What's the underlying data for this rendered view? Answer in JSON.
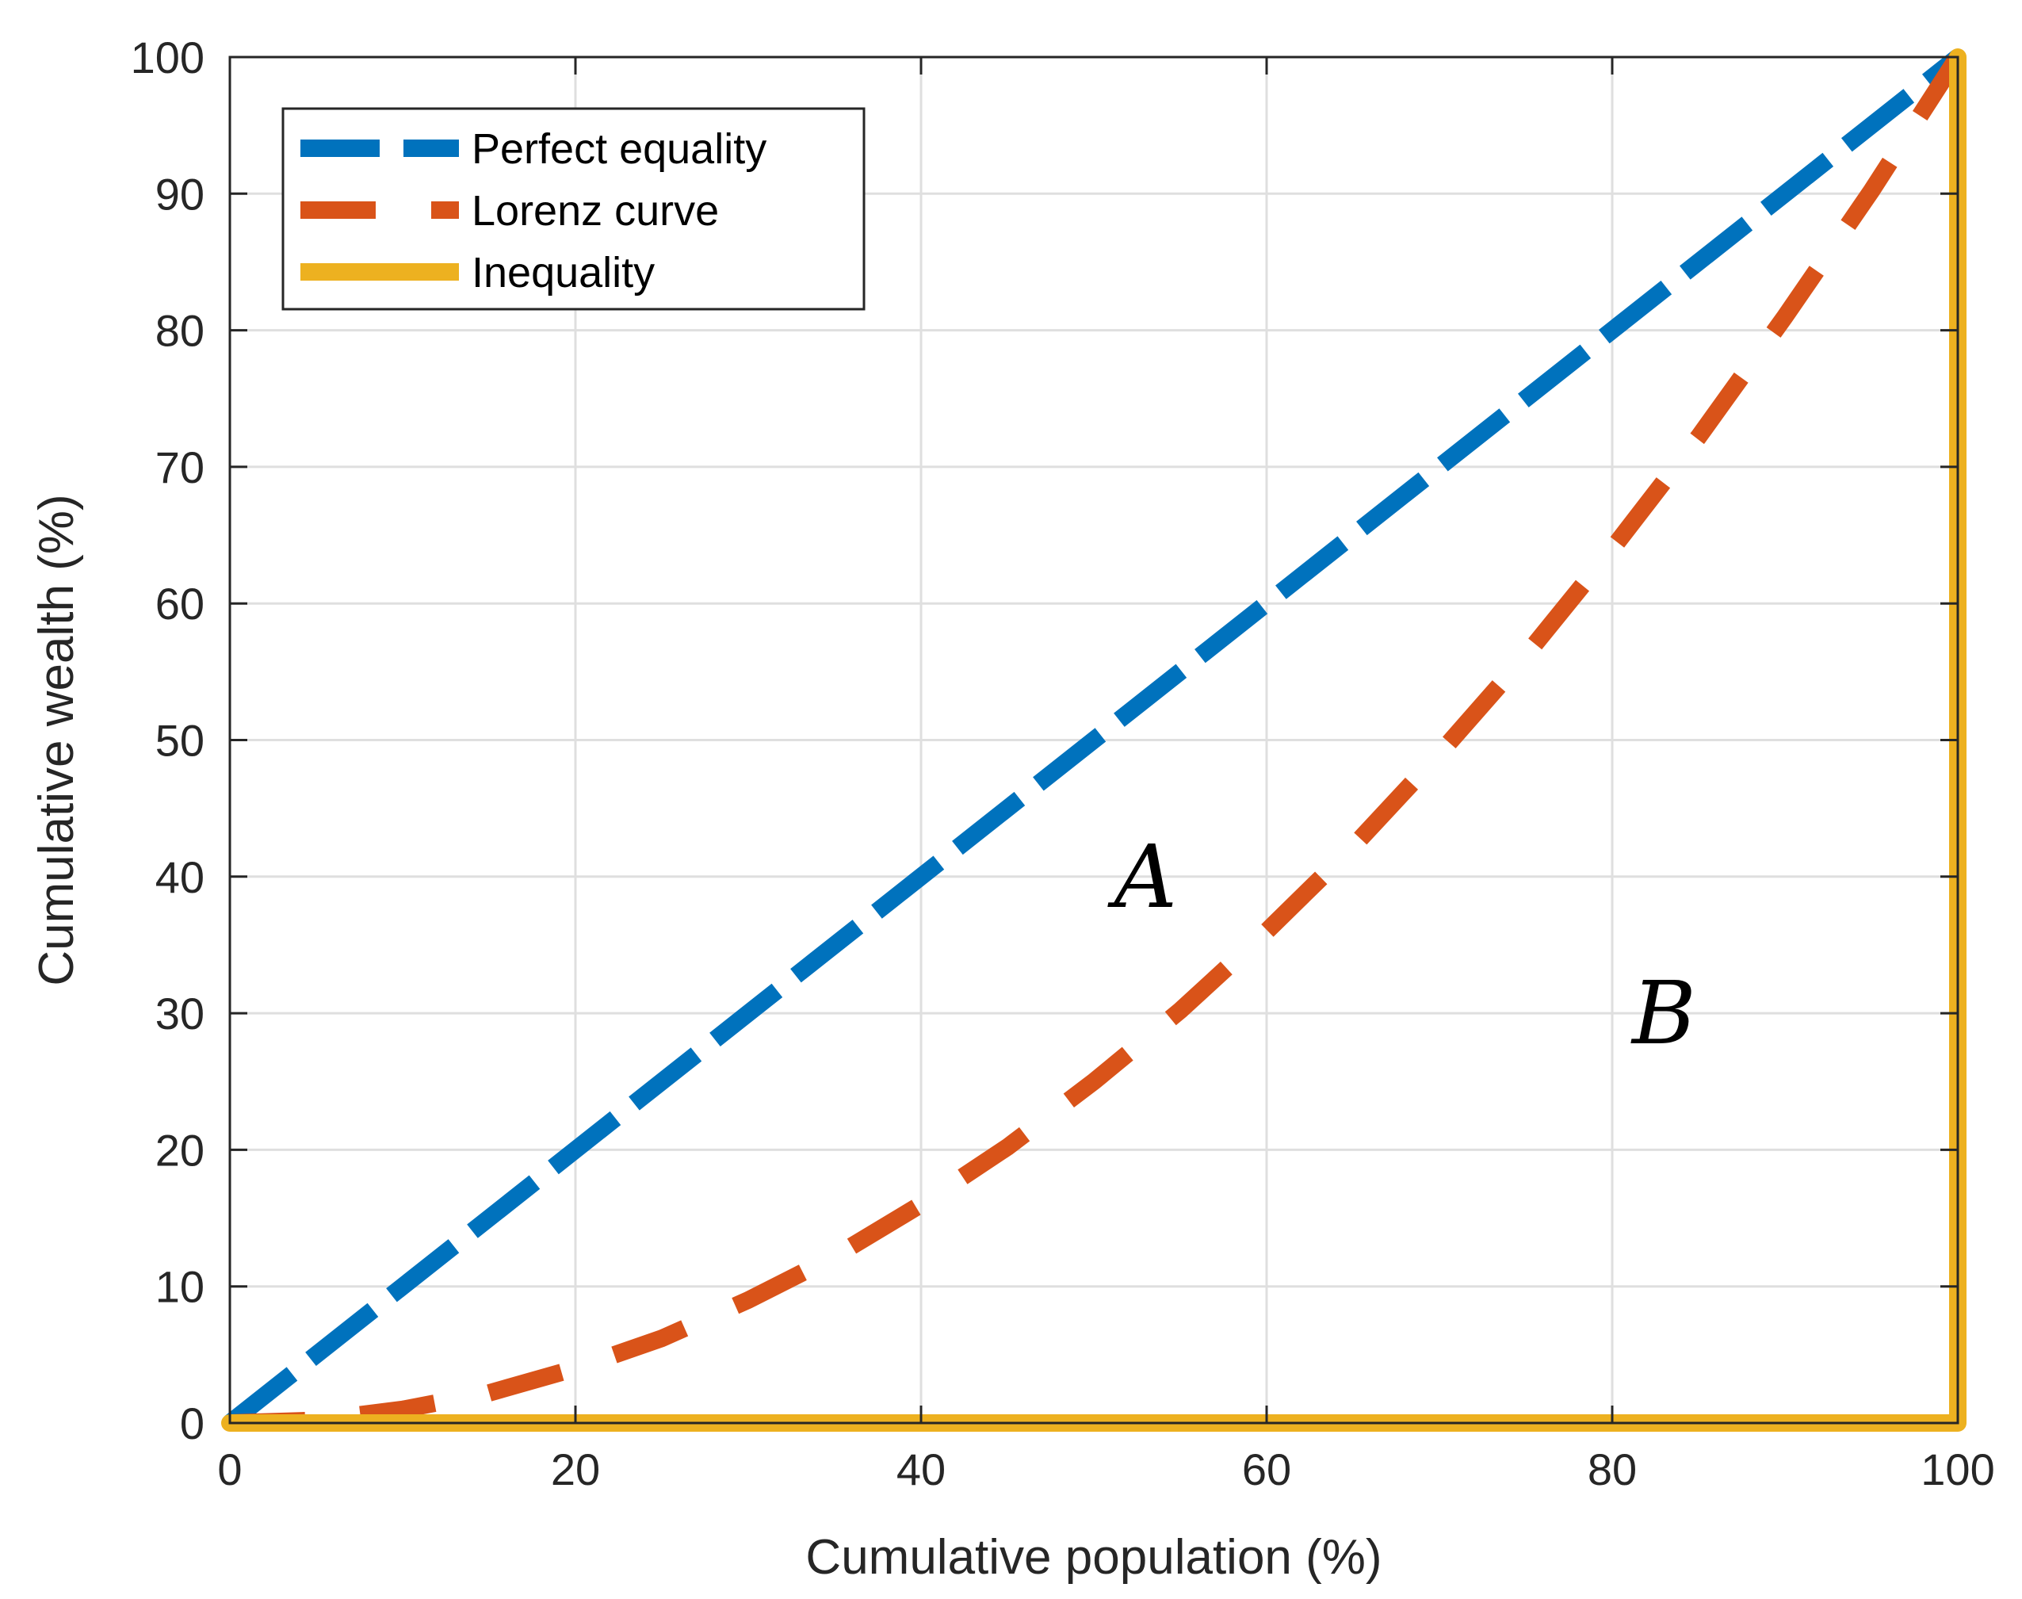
{
  "chart_data": {
    "type": "line",
    "title": "",
    "xlabel": "Cumulative population (%)",
    "ylabel": "Cumulative wealth (%)",
    "xlim": [
      0,
      100
    ],
    "ylim": [
      0,
      100
    ],
    "xticks": [
      0,
      20,
      40,
      60,
      80,
      100
    ],
    "yticks": [
      0,
      10,
      20,
      30,
      40,
      50,
      60,
      70,
      80,
      90,
      100
    ],
    "grid": true,
    "legend_position": "top-left",
    "series": [
      {
        "name": "Perfect equality",
        "style": "dashed",
        "color": "#0072BD",
        "x": [
          0,
          100
        ],
        "y": [
          0,
          100
        ]
      },
      {
        "name": "Lorenz curve",
        "style": "dashed",
        "color": "#D95319",
        "x": [
          0,
          5,
          10,
          15,
          20,
          25,
          30,
          35,
          40,
          45,
          50,
          55,
          60,
          65,
          70,
          75,
          80,
          85,
          90,
          95,
          100
        ],
        "y": [
          0,
          0.2,
          1,
          2.2,
          4,
          6.2,
          9,
          12.2,
          16,
          20.2,
          25,
          30.2,
          36,
          42.2,
          49,
          56.2,
          64,
          72.2,
          81,
          90.2,
          100
        ]
      },
      {
        "name": "Inequality",
        "style": "solid",
        "color": "#EDB120",
        "x": [
          0,
          100,
          100
        ],
        "y": [
          0,
          0,
          100
        ]
      }
    ],
    "annotations": [
      {
        "text": "A",
        "x": 53,
        "y": 40
      },
      {
        "text": "B",
        "x": 83,
        "y": 30
      }
    ]
  }
}
